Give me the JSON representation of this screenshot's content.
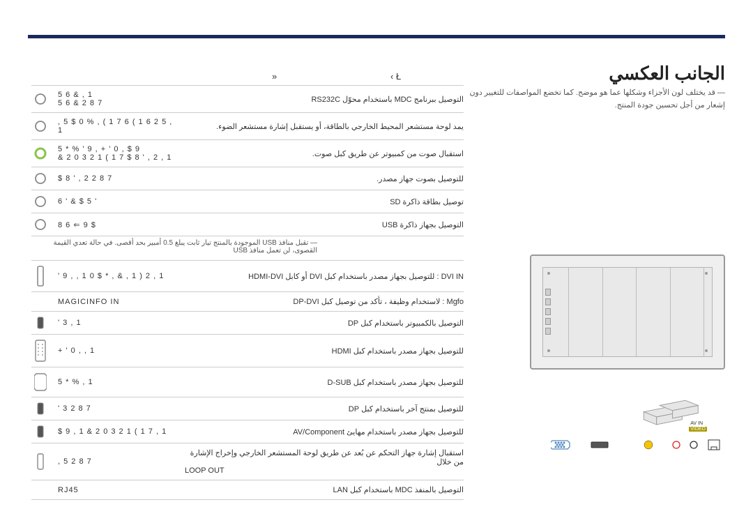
{
  "toprule_color": "#1a2a5c",
  "title": "الجانب العكسي",
  "page_number_glyph": "‹  Ł",
  "tab_glyph": "»",
  "note": "― قد يختلف لون الأجزاء وشكلها عما هو موضح. كما تخضع المواصفات للتغيير دون إشعار من أجل تحسين جودة المنتج.",
  "avin": "AV IN",
  "video": "VIDEO",
  "rows": [
    {
      "icon": "circle",
      "label": "5 6   & , 1",
      "label2": "5 6   & 2 8 7",
      "desc": "التوصيل ببرنامج MDC باستخدام محوّل RS232C"
    },
    {
      "icon": "circle",
      "label": ", 5   $ 0 % , ( 1 7  6 ( 1 6 2 5  , 1",
      "desc": "يمد لوحة مستشعر المحيط الخارجي بالطاقة، أو يستقبل إشارة مستشعر الضوء."
    },
    {
      "icon": "circle-g",
      "label": "5 * %   ' 9 ,   + ' 0 ,   $ 9",
      "label2": "& 2 0 3 2 1 ( 1 7   $ 8 ' , 2  , 1",
      "desc": "استقبال صوت من كمبيوتر عن طريق كبل صوت."
    },
    {
      "icon": "circle",
      "label": "$ 8 ' , 2  2 8 7",
      "desc": "للتوصيل بصوت جهاز مصدر."
    },
    {
      "icon": "circle",
      "label": "6 '   & $ 5 '",
      "desc": "توصيل بطاقة ذاكرة SD"
    },
    {
      "icon": "circle",
      "label": "8 6 ⇐   9   $",
      "desc": "التوصيل بجهاز ذاكرة USB"
    },
    {
      "icon": "",
      "subnote": "― تقبل منافذ USB   الموجودة بالمنتج تيار ثابت يبلغ 0.5 أمبير بحد أقصى. في حالة تعدي القيمة القصوى، لن تعمل منافذ USB"
    },
    {
      "icon": "slot-l",
      "label": "' 9 ,  , 1   0 $ * , & , 1 ) 2  , 1",
      "desc": "DVI IN : للتوصيل بجهاز مصدر باستخدام كبل DVI أو كابل HDMI-DVI"
    },
    {
      "icon": "",
      "label": "MAGICINFO IN",
      "desc": "Mgfo   : لاستخدام وظيفة   ، تأكد من توصيل كبل DP-DVI"
    },
    {
      "icon": "slot-s",
      "label": "' 3  , 1",
      "desc": "التوصيل بالكمبيوتر باستخدام كبل DP"
    },
    {
      "icon": "dvi",
      "label": "+ ' 0 ,  , 1",
      "desc": "للتوصيل بجهاز مصدر باستخدام كبل HDMI"
    },
    {
      "icon": "vga",
      "label": "5 * %  , 1",
      "desc": "للتوصيل بجهاز مصدر باستخدام كبل D-SUB"
    },
    {
      "icon": "slot-s",
      "label": "' 3  2 8 7",
      "desc": "للتوصيل بمنتج آخر باستخدام كبل DP"
    },
    {
      "icon": "slot-s",
      "label": "$ 9  , 1   & 2 0 3 2 1 ( 1 7  , 1",
      "desc": "للتوصيل بجهاز مصدر باستخدام مهايئ AV/Component"
    },
    {
      "icon": "slot-v",
      "label": ", 5  2 8 7",
      "label2b": "LOOP OUT",
      "desc": "استقبال إشارة جهاز التحكم عن بُعد عن طريق لوحة المستشعر الخارجي وإخراج الإشارة من خلال"
    },
    {
      "icon": "",
      "label": "RJ45",
      "desc": "التوصيل بالمنفذ MDC باستخدام كبل LAN"
    }
  ],
  "colors": {
    "rule": "#cccccc",
    "text": "#333333",
    "subtext": "#555555",
    "ring": "#888888",
    "green": "#8bc34a"
  }
}
